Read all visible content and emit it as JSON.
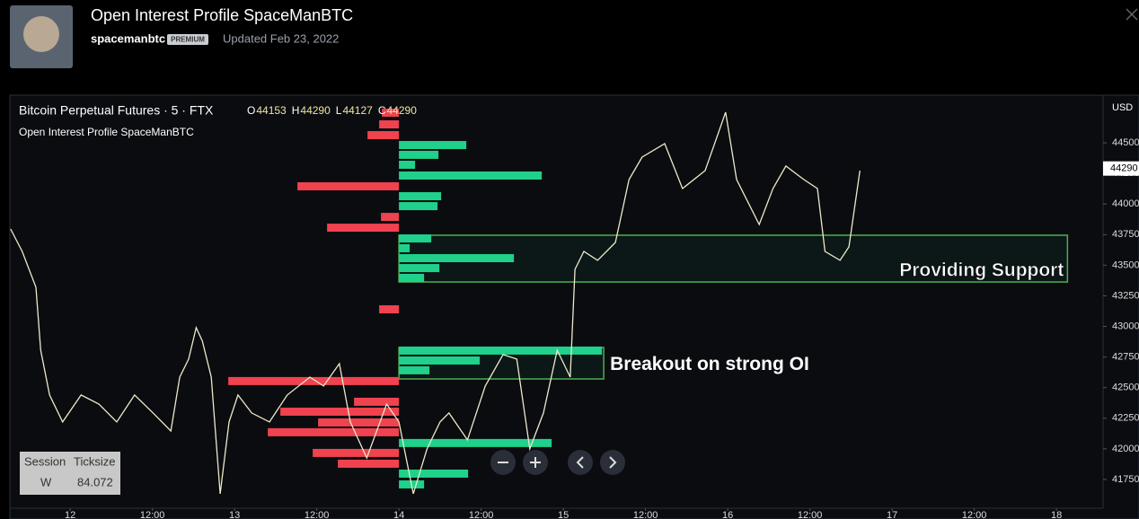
{
  "header": {
    "title": "Open Interest Profile SpaceManBTC",
    "author": "spacemanbtc",
    "badge": "PREMIUM",
    "updated": "Updated Feb 23, 2022"
  },
  "chart": {
    "symbol": "Bitcoin Perpetual Futures · 5 · FTX",
    "ohlc": [
      {
        "label": "O",
        "value": 44153
      },
      {
        "label": "H",
        "value": 44290
      },
      {
        "label": "L",
        "value": 44127
      },
      {
        "label": "C",
        "value": 44290
      }
    ],
    "indicator": "Open Interest Profile SpaceManBTC",
    "currency": "USD",
    "last_price": 44290,
    "xlim": [
      -8.8,
      150.8
    ],
    "ylim": [
      41515,
      44889
    ],
    "yticks": [
      41750,
      42000,
      42250,
      42500,
      42750,
      43000,
      43250,
      43500,
      43750,
      44000,
      44250,
      44500
    ],
    "xticks": [
      {
        "value": 0,
        "label": "12"
      },
      {
        "value": 12,
        "label": "12:00"
      },
      {
        "value": 24,
        "label": "13"
      },
      {
        "value": 36,
        "label": "12:00"
      },
      {
        "value": 48,
        "label": "14"
      },
      {
        "value": 60,
        "label": "12:00"
      },
      {
        "value": 72,
        "label": "15"
      },
      {
        "value": 84,
        "label": "12:00"
      },
      {
        "value": 96,
        "label": "16"
      },
      {
        "value": 108,
        "label": "12:00"
      },
      {
        "value": 120,
        "label": "17"
      },
      {
        "value": 132,
        "label": "12:00"
      },
      {
        "value": 144,
        "label": "18"
      }
    ],
    "price_color": "#ece9c9",
    "up_color": "#1fd18a",
    "down_color": "#f0424f",
    "price_x": [
      -8.7,
      -7.0,
      -5.0,
      -4.3,
      -3.0,
      -1.1,
      1.6,
      4.2,
      6.8,
      9.4,
      12.1,
      14.7,
      16.0,
      17.3,
      18.4,
      19.3,
      20.6,
      21.9,
      23.2,
      24.5,
      26.5,
      29.1,
      31.7,
      35.0,
      37.0,
      39.3,
      40.9,
      43.3,
      46.2,
      48.0,
      50.1,
      52.1,
      54.0,
      55.3,
      58.0,
      60.6,
      63.2,
      65.2,
      67.1,
      69.1,
      71.1,
      73.0,
      73.7,
      75.0,
      77.0,
      79.6,
      81.6,
      83.5,
      86.8,
      89.4,
      92.7,
      95.7,
      97.3,
      100.6,
      102.6,
      104.5,
      107.1,
      109.1,
      110.2,
      112.4,
      113.7,
      115.3
    ],
    "price_y": [
      43796,
      43613,
      43320,
      42806,
      42440,
      42220,
      42440,
      42366,
      42220,
      42440,
      42293,
      42146,
      42586,
      42733,
      42990,
      42880,
      42586,
      41633,
      42220,
      42440,
      42293,
      42220,
      42440,
      42586,
      42513,
      42696,
      42220,
      41926,
      42366,
      42220,
      41633,
      42000,
      42220,
      42293,
      42073,
      42513,
      42770,
      42733,
      42000,
      42293,
      42806,
      42586,
      43466,
      43613,
      43540,
      43686,
      44200,
      44383,
      44493,
      44126,
      44273,
      44750,
      44200,
      43833,
      44126,
      44310,
      44200,
      44126,
      43613,
      43540,
      43650,
      44273
    ],
    "oi_anchor_x": 48,
    "oi_bars": [
      {
        "price": 44742,
        "value": -19
      },
      {
        "price": 44647,
        "value": -22
      },
      {
        "price": 44559,
        "value": -35
      },
      {
        "price": 44478,
        "value": 75
      },
      {
        "price": 44398,
        "value": 44
      },
      {
        "price": 44317,
        "value": 18
      },
      {
        "price": 44229,
        "value": 159
      },
      {
        "price": 44141,
        "value": -113
      },
      {
        "price": 44060,
        "value": 47
      },
      {
        "price": 43979,
        "value": 43
      },
      {
        "price": 43891,
        "value": -20
      },
      {
        "price": 43803,
        "value": -80
      },
      {
        "price": 43715,
        "value": 36
      },
      {
        "price": 43635,
        "value": 12
      },
      {
        "price": 43554,
        "value": 128
      },
      {
        "price": 43473,
        "value": 45
      },
      {
        "price": 43393,
        "value": 28
      },
      {
        "price": 43136,
        "value": -22
      },
      {
        "price": 42799,
        "value": 226
      },
      {
        "price": 42718,
        "value": 90
      },
      {
        "price": 42638,
        "value": 34
      },
      {
        "price": 42550,
        "value": -190
      },
      {
        "price": 42381,
        "value": -50
      },
      {
        "price": 42300,
        "value": -132
      },
      {
        "price": 42212,
        "value": -90
      },
      {
        "price": 42132,
        "value": -146
      },
      {
        "price": 42044,
        "value": 170
      },
      {
        "price": 41963,
        "value": -96
      },
      {
        "price": 41875,
        "value": -68
      },
      {
        "price": 41794,
        "value": 77
      },
      {
        "price": 41706,
        "value": 28
      }
    ],
    "zones": [
      {
        "text": "Providing Support",
        "x0": 48,
        "x1": 145.6,
        "y0": 43363,
        "y1": 43745
      },
      {
        "text": "Breakout on strong OI",
        "x0": 48,
        "x1": 77.9,
        "y0": 42571,
        "y1": 42828
      }
    ],
    "session_table": {
      "headers": [
        "Session",
        "Ticksize"
      ],
      "row": [
        "W",
        "84.072"
      ]
    }
  }
}
